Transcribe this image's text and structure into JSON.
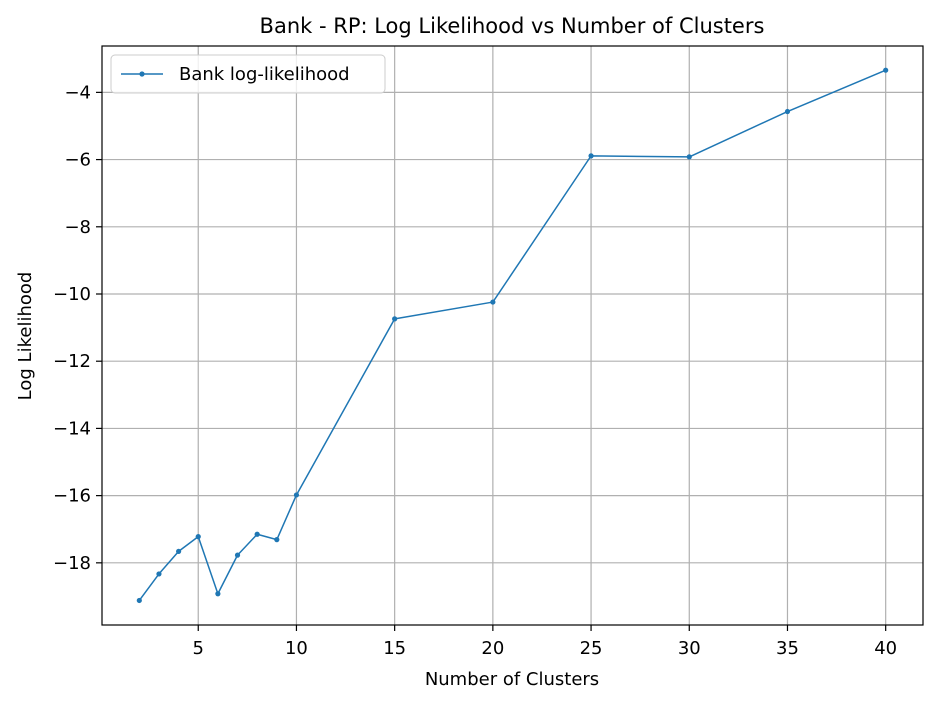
{
  "chart_data": {
    "type": "line",
    "title": "Bank - RP: Log Likelihood vs Number of Clusters",
    "xlabel": "Number of Clusters",
    "ylabel": "Log Likelihood",
    "xlim": [
      0.1,
      41.9
    ],
    "ylim": [
      -19.85,
      -2.62
    ],
    "xticks": [
      5,
      10,
      15,
      20,
      25,
      30,
      35,
      40
    ],
    "yticks": [
      -18,
      -16,
      -14,
      -12,
      -10,
      -8,
      -6,
      -4
    ],
    "grid": true,
    "legend_position": "top-left",
    "series": [
      {
        "name": "Bank log-likelihood",
        "color": "#1f77b4",
        "x": [
          2,
          3,
          4,
          5,
          6,
          7,
          8,
          9,
          10,
          15,
          20,
          25,
          30,
          35,
          40
        ],
        "y": [
          -19.12,
          -18.33,
          -17.66,
          -17.22,
          -18.92,
          -17.77,
          -17.15,
          -17.31,
          -15.98,
          -10.74,
          -10.24,
          -5.89,
          -5.92,
          -4.57,
          -3.34
        ]
      }
    ]
  }
}
